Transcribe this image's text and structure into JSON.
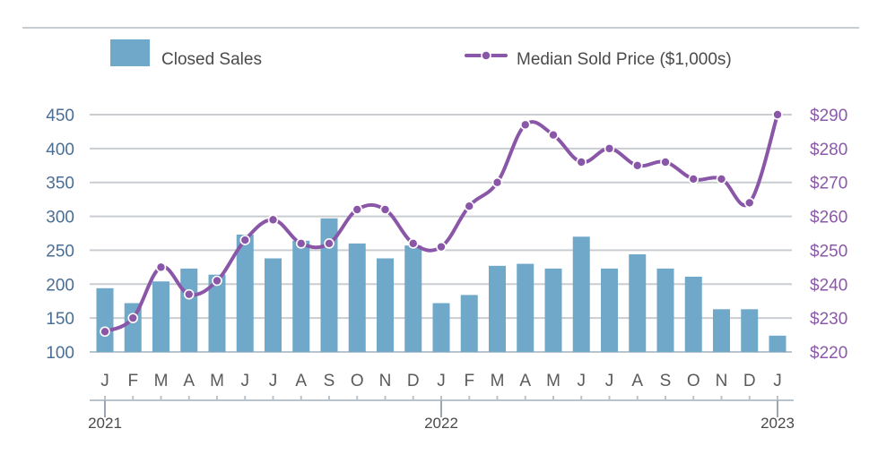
{
  "chart_data": {
    "type": "bar-line-combo",
    "legend": {
      "bar_label": "Closed Sales",
      "line_label": "Median Sold Price ($1,000s)",
      "placement": "top"
    },
    "categories": [
      "J",
      "F",
      "M",
      "A",
      "M",
      "J",
      "J",
      "A",
      "S",
      "O",
      "N",
      "D",
      "J",
      "F",
      "M",
      "A",
      "M",
      "J",
      "J",
      "A",
      "S",
      "O",
      "N",
      "D",
      "J"
    ],
    "year_labels": [
      "2021",
      "2022",
      "2023"
    ],
    "series": [
      {
        "name": "Closed Sales",
        "kind": "bar",
        "axis": "left",
        "color": "#6fa8c8",
        "values": [
          194,
          172,
          204,
          223,
          214,
          273,
          238,
          264,
          297,
          260,
          238,
          257,
          172,
          184,
          227,
          230,
          223,
          270,
          223,
          244,
          223,
          211,
          163,
          163,
          124
        ]
      },
      {
        "name": "Median Sold Price ($1,000s)",
        "kind": "line",
        "axis": "right",
        "color": "#8a56a8",
        "values": [
          226,
          230,
          245,
          237,
          241,
          253,
          259,
          252,
          252,
          262,
          262,
          252,
          251,
          263,
          270,
          287,
          284,
          276,
          280,
          275,
          276,
          271,
          271,
          264,
          290
        ]
      }
    ],
    "left_axis": {
      "ylim": [
        100,
        450
      ],
      "ticks": [
        "100",
        "150",
        "200",
        "250",
        "300",
        "350",
        "400",
        "450"
      ]
    },
    "right_axis": {
      "ylim": [
        220,
        290
      ],
      "ticks": [
        "$220",
        "$230",
        "$240",
        "$250",
        "$260",
        "$270",
        "$280",
        "$290"
      ]
    },
    "grid": true
  }
}
